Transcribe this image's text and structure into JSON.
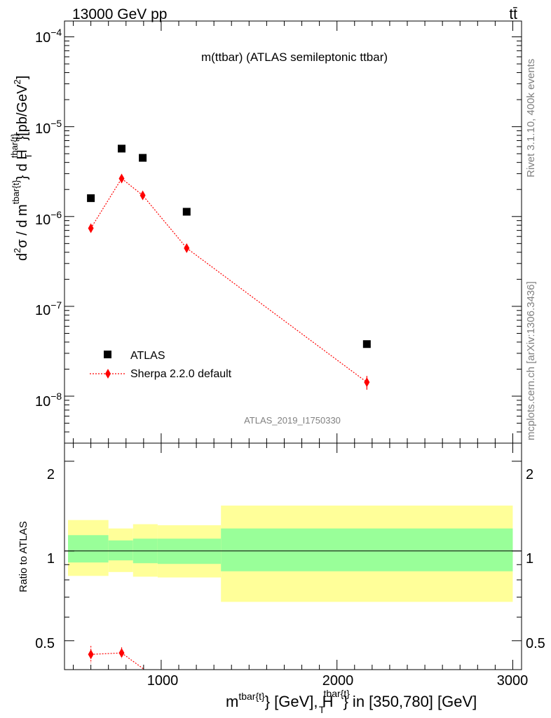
{
  "header": {
    "energy": "13000 GeV pp",
    "process": "tt̄",
    "title": "m(ttbar) (ATLAS semileptonic ttbar)",
    "analysis": "ATLAS_2019_I1750330",
    "rivet": "Rivet 3.1.10,  400k events",
    "mcplots": "mcplots.cern.ch [arXiv:1306.3436]"
  },
  "axes": {
    "ylabel_main": "d²σ / d m^{tbar{t}} d H_T^{tbar{t}} [pb/GeV²]",
    "ylabel_ratio": "Ratio to ATLAS",
    "xlabel": "m^{tbar{t}} [GeV], H_T^{tbar{t}} in [350,780] [GeV]",
    "x_ticks": [
      "1000",
      "2000",
      "3000"
    ],
    "main_ticks": [
      {
        "mant": "10",
        "exp": "−4"
      },
      {
        "mant": "10",
        "exp": "−5"
      },
      {
        "mant": "10",
        "exp": "−6"
      },
      {
        "mant": "10",
        "exp": "−7"
      },
      {
        "mant": "10",
        "exp": "−8"
      }
    ],
    "ratio_ticks": [
      "2",
      "1",
      "0.5"
    ]
  },
  "legend": {
    "atlas": "ATLAS",
    "sherpa": "Sherpa 2.2.0 default"
  },
  "colors": {
    "data": "#000000",
    "mc": "#ff0000",
    "band_stat": "#99ff99",
    "band_total": "#ffff99"
  },
  "chart_data": {
    "type": "scatter",
    "x_scale": "linear",
    "y_scale": "log",
    "xlim": [
      450,
      3050
    ],
    "ylim": [
      3e-09,
      0.00015
    ],
    "ratio_ylim": [
      0.4,
      2.3
    ],
    "ratio_scale": "log",
    "bins": [
      [
        470,
        700
      ],
      [
        700,
        840
      ],
      [
        840,
        980
      ],
      [
        980,
        1340
      ],
      [
        1340,
        3000
      ]
    ],
    "series": [
      {
        "name": "ATLAS",
        "x": [
          600,
          775,
          895,
          1145,
          2170
        ],
        "y": [
          1.6e-06,
          5.7e-06,
          4.5e-06,
          1.13e-06,
          3.8e-08
        ]
      },
      {
        "name": "Sherpa 2.2.0 default",
        "x": [
          600,
          775,
          895,
          1145,
          2170
        ],
        "y": [
          7.4e-07,
          2.65e-06,
          1.72e-06,
          4.45e-07,
          1.43e-08
        ],
        "yerr": [
          4e-08,
          1e-07,
          8e-08,
          3e-08,
          2.5e-09
        ]
      }
    ],
    "ratio": {
      "reference": 1,
      "mc_points": [
        {
          "x": 600,
          "y": 0.45,
          "err": 0.03
        },
        {
          "x": 775,
          "y": 0.455,
          "err": 0.02
        }
      ],
      "mc_line_exit_x": 905,
      "stat_band": [
        [
          0.915,
          1.13
        ],
        [
          0.93,
          1.085
        ],
        [
          0.91,
          1.1
        ],
        [
          0.905,
          1.1
        ],
        [
          0.855,
          1.19
        ]
      ],
      "total_band": [
        [
          0.825,
          1.27
        ],
        [
          0.85,
          1.19
        ],
        [
          0.82,
          1.23
        ],
        [
          0.815,
          1.22
        ],
        [
          0.675,
          1.42
        ]
      ]
    }
  }
}
